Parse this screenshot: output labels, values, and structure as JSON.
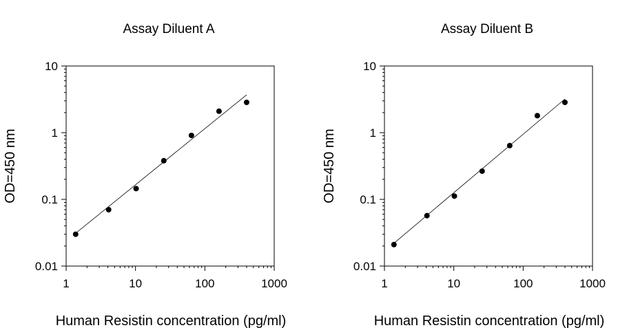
{
  "chart_data": [
    {
      "type": "scatter",
      "title": "Assay Diluent A",
      "xlabel": "Human Resistin concentration (pg/ml)",
      "ylabel": "OD=450 nm",
      "xscale": "log",
      "yscale": "log",
      "xlim": [
        1,
        1000
      ],
      "ylim": [
        0.01,
        10
      ],
      "xticks": [
        "1",
        "10",
        "100",
        "1000"
      ],
      "yticks": [
        "0.01",
        "0.1",
        "1",
        "10"
      ],
      "grid": false,
      "points": {
        "x": [
          1.37,
          4.1,
          10.2,
          25.6,
          64,
          160,
          400
        ],
        "y": [
          0.03,
          0.07,
          0.145,
          0.38,
          0.91,
          2.1,
          2.85
        ]
      },
      "fit_line": {
        "x": [
          1.37,
          400
        ],
        "y": [
          0.031,
          3.7
        ]
      }
    },
    {
      "type": "scatter",
      "title": "Assay Diluent B",
      "xlabel": "Human Resistin concentration (pg/ml)",
      "ylabel": "OD=450 nm",
      "xscale": "log",
      "yscale": "log",
      "xlim": [
        1,
        1000
      ],
      "ylim": [
        0.01,
        10
      ],
      "xticks": [
        "1",
        "10",
        "100",
        "1000"
      ],
      "yticks": [
        "0.01",
        "0.1",
        "1",
        "10"
      ],
      "grid": false,
      "points": {
        "x": [
          1.37,
          4.1,
          10.2,
          25.6,
          64,
          160,
          400
        ],
        "y": [
          0.021,
          0.057,
          0.112,
          0.265,
          0.64,
          1.8,
          2.85
        ]
      },
      "fit_line": {
        "x": [
          1.37,
          400
        ],
        "y": [
          0.022,
          3.2
        ]
      }
    }
  ]
}
